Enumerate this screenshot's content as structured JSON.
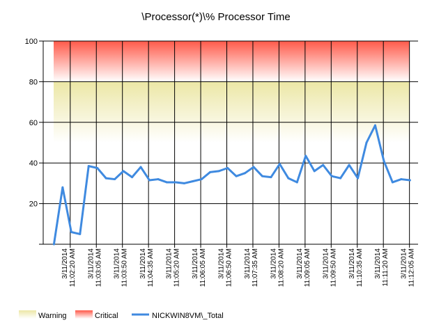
{
  "chart_data": {
    "type": "line",
    "title": "\\Processor(*)\\% Processor Time",
    "xlabel": "",
    "ylabel": "",
    "ylim": [
      0,
      100
    ],
    "yticks": [
      20,
      40,
      60,
      80,
      100
    ],
    "grid": true,
    "legend_position": "bottom-left",
    "x_tick_labels": [
      [
        "3/11/2014",
        "11:02:20 AM"
      ],
      [
        "3/11/2014",
        "11:03:05 AM"
      ],
      [
        "3/11/2014",
        "11:03:50 AM"
      ],
      [
        "3/11/2014",
        "11:04:35 AM"
      ],
      [
        "3/11/2014",
        "11:05:20 AM"
      ],
      [
        "3/11/2014",
        "11:06:05 AM"
      ],
      [
        "3/11/2014",
        "11:06:50 AM"
      ],
      [
        "3/11/2014",
        "11:07:35 AM"
      ],
      [
        "3/11/2014",
        "11:08:20 AM"
      ],
      [
        "3/11/2014",
        "11:09:05 AM"
      ],
      [
        "3/11/2014",
        "11:09:50 AM"
      ],
      [
        "3/11/2014",
        "11:10:35 AM"
      ],
      [
        "3/11/2014",
        "11:11:20 AM"
      ],
      [
        "3/11/2014",
        "11:12:05 AM"
      ]
    ],
    "bands": [
      {
        "name": "Warning",
        "from": 50,
        "to": 80,
        "color": "#ece7a6"
      },
      {
        "name": "Critical",
        "from": 80,
        "to": 100,
        "color": "#ff5a4a"
      }
    ],
    "series": [
      {
        "name": "NICKWIN8VM\\_Total",
        "color": "#3f8ae0",
        "x": [
          "11:01:50",
          "11:02:05",
          "11:02:20",
          "11:02:35",
          "11:02:50",
          "11:03:05",
          "11:03:20",
          "11:03:35",
          "11:03:50",
          "11:04:05",
          "11:04:20",
          "11:04:35",
          "11:04:50",
          "11:05:05",
          "11:05:20",
          "11:05:35",
          "11:05:50",
          "11:06:05",
          "11:06:20",
          "11:06:35",
          "11:06:50",
          "11:07:05",
          "11:07:20",
          "11:07:35",
          "11:07:50",
          "11:08:05",
          "11:08:20",
          "11:08:35",
          "11:08:50",
          "11:09:05",
          "11:09:20",
          "11:09:35",
          "11:09:50",
          "11:10:05",
          "11:10:20",
          "11:10:35",
          "11:10:50",
          "11:11:05",
          "11:11:20",
          "11:11:35",
          "11:11:50",
          "11:12:05"
        ],
        "values": [
          0,
          28,
          6,
          5,
          38.5,
          37.5,
          32.5,
          32,
          36,
          33,
          38,
          31.5,
          32,
          30.5,
          30.5,
          30,
          31,
          32,
          35.5,
          36,
          37.5,
          33.5,
          35,
          38,
          33.5,
          33,
          39.5,
          32.5,
          30.5,
          43.5,
          36,
          39,
          33.5,
          32.5,
          39,
          32.5,
          50,
          58.5,
          41,
          30.5,
          32,
          31.5
        ]
      }
    ]
  }
}
